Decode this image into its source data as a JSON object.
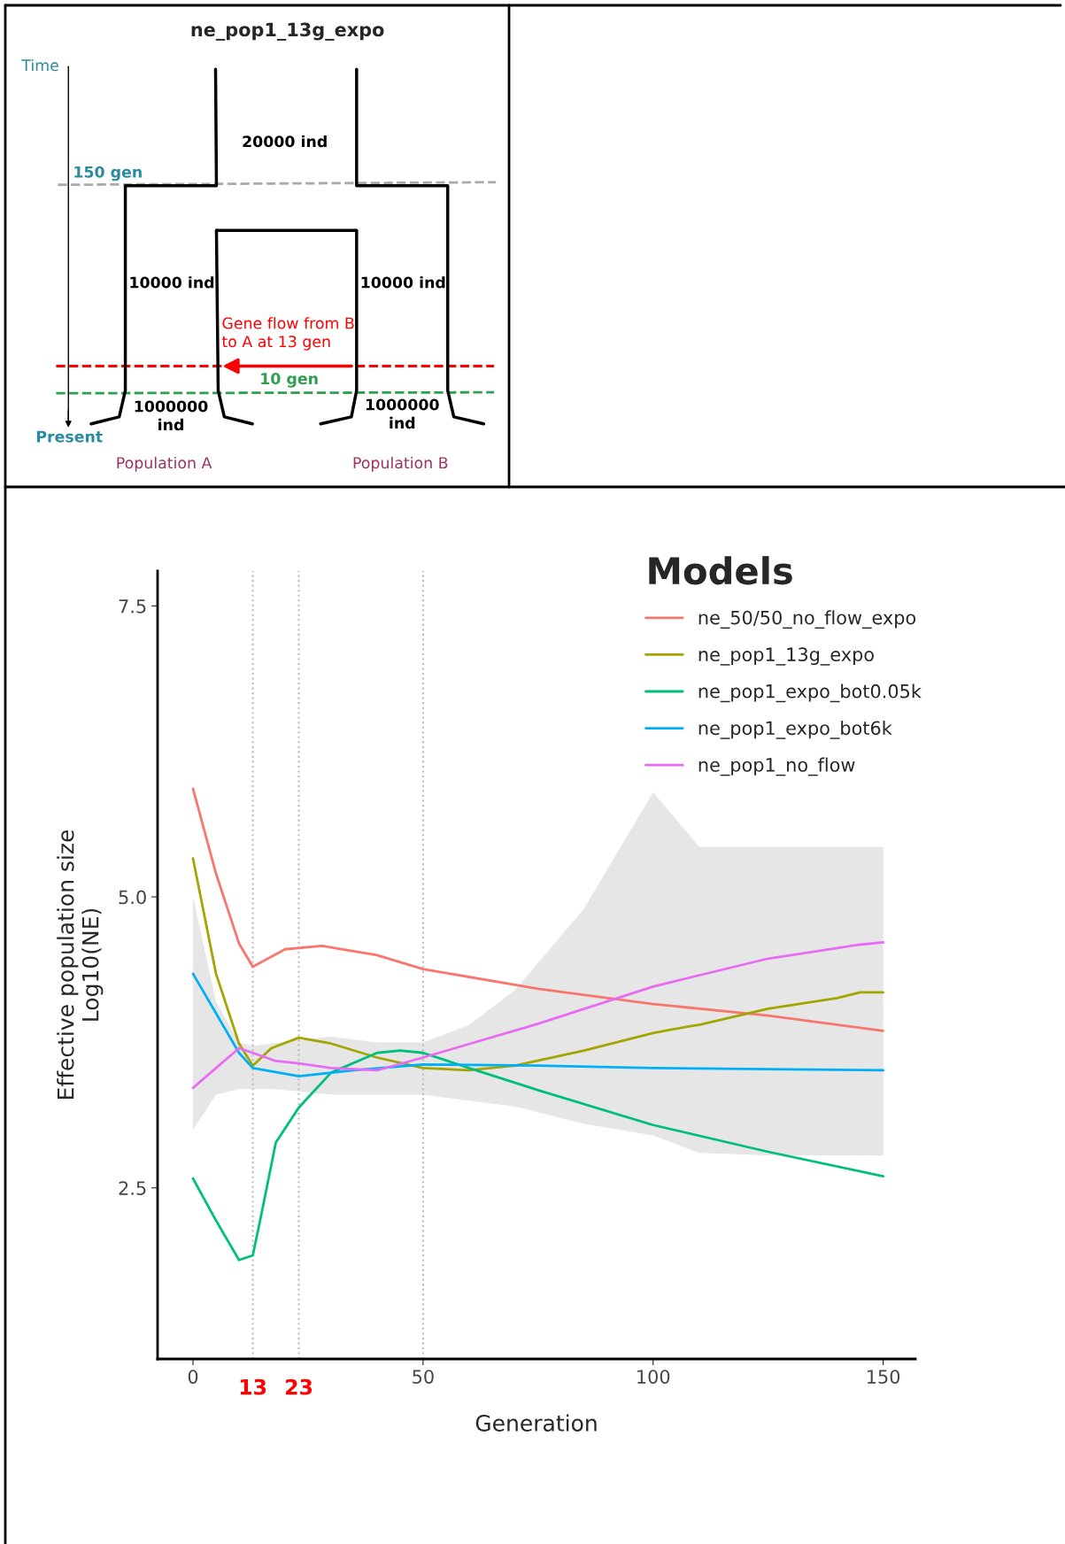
{
  "chart_data": [
    {
      "type": "other",
      "title": "ne_pop1_13g_expo",
      "annotations": [
        "Time",
        "150 gen",
        "20000 ind",
        "10000 ind",
        "10000 ind",
        "Gene flow from B\nto A at 13 gen",
        "10 gen",
        "1000000\nind",
        "1000000\nind",
        "Present",
        "Population A",
        "Population B"
      ]
    },
    {
      "type": "line",
      "xlabel": "Generation",
      "ylabel": "Effective population size\nLog10(NE)",
      "legend_title": "Models",
      "legend": "top right",
      "grid": false,
      "xlim": [
        -7.7,
        157
      ],
      "ylim": [
        1.03,
        7.8
      ],
      "xticks": [
        0,
        50,
        100,
        150
      ],
      "yticks": [
        {
          "value": 2.5,
          "label": "2.5"
        },
        {
          "value": 5.0,
          "label": "5.0"
        },
        {
          "value": 7.5,
          "label": "7.5"
        }
      ],
      "ref_lines": [
        {
          "axis": "x",
          "value": 13,
          "label": "13",
          "color": "#bbbbbb",
          "line_style": "dotted"
        },
        {
          "axis": "x",
          "value": 23,
          "label": "23",
          "color": "#bbbbbb",
          "line_style": "dotted"
        },
        {
          "axis": "x",
          "value": 50,
          "label": null,
          "color": "#bbbbbb",
          "line_style": "dotted"
        }
      ],
      "series": [
        {
          "name": "ne_50/50_no_flow_expo",
          "color": "#f8766d",
          "x": [
            0,
            5,
            10,
            13,
            20,
            28,
            40,
            50,
            75,
            100,
            125,
            150
          ],
          "values": [
            5.93,
            5.2,
            4.6,
            4.4,
            4.55,
            4.58,
            4.5,
            4.38,
            4.21,
            4.08,
            3.98,
            3.85
          ]
        },
        {
          "name": "ne_pop1_13g_expo",
          "color": "#a3a500",
          "x": [
            0,
            5,
            10,
            13,
            17,
            23,
            30,
            40,
            50,
            60,
            70,
            85,
            100,
            108,
            110,
            125,
            140,
            145,
            150
          ],
          "values": [
            5.33,
            4.34,
            3.74,
            3.55,
            3.7,
            3.79,
            3.74,
            3.62,
            3.53,
            3.51,
            3.55,
            3.68,
            3.83,
            3.89,
            3.9,
            4.04,
            4.13,
            4.18,
            4.18
          ],
          "lower": [
            3.0,
            3.3,
            3.35,
            3.35,
            3.35,
            3.33,
            3.3,
            3.3,
            3.3,
            3.25,
            3.2,
            3.05,
            2.95,
            null,
            2.8,
            2.78,
            2.78,
            2.78,
            2.78
          ],
          "upper": [
            5.0,
            4.1,
            3.75,
            3.72,
            3.74,
            3.77,
            3.8,
            3.75,
            3.75,
            3.9,
            4.2,
            4.9,
            5.9,
            null,
            5.43,
            5.43,
            5.43,
            5.43,
            5.43
          ]
        },
        {
          "name": "ne_pop1_expo_bot0.05k",
          "color": "#00bf7d",
          "x": [
            0,
            5,
            10,
            13,
            15,
            18,
            23,
            30,
            40,
            45,
            50,
            60,
            75,
            100,
            125,
            150
          ],
          "values": [
            2.58,
            2.22,
            1.88,
            1.92,
            2.3,
            2.89,
            3.19,
            3.49,
            3.66,
            3.68,
            3.66,
            3.53,
            3.34,
            3.04,
            2.81,
            2.6
          ]
        },
        {
          "name": "ne_pop1_expo_bot6k",
          "color": "#00b0f6",
          "x": [
            0,
            5,
            10,
            13,
            23,
            35,
            50,
            75,
            100,
            150
          ],
          "values": [
            4.34,
            4.0,
            3.66,
            3.53,
            3.46,
            3.51,
            3.56,
            3.55,
            3.53,
            3.51
          ]
        },
        {
          "name": "ne_pop1_no_flow",
          "color": "#e76bf3",
          "x": [
            0,
            5,
            10,
            13,
            18,
            23,
            30,
            40,
            50,
            75,
            100,
            125,
            145,
            150
          ],
          "values": [
            3.36,
            3.53,
            3.7,
            3.66,
            3.59,
            3.57,
            3.53,
            3.51,
            3.62,
            3.91,
            4.23,
            4.47,
            4.59,
            4.61
          ]
        }
      ]
    }
  ]
}
